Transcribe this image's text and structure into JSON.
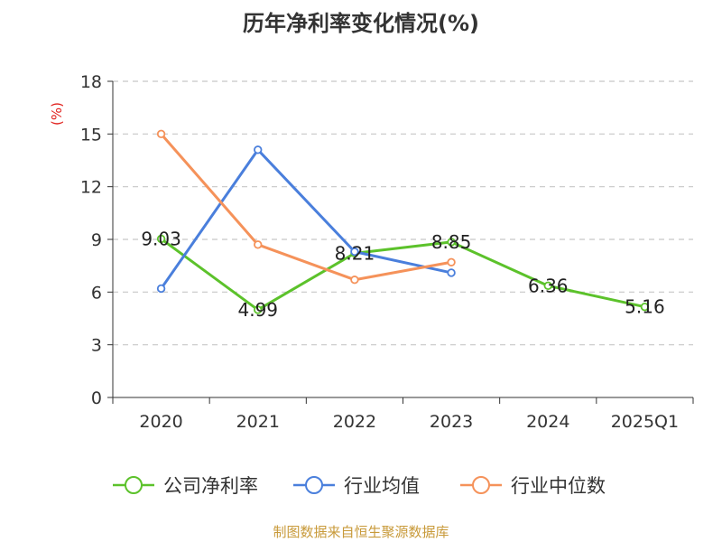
{
  "title": "历年净利率变化情况(%)",
  "source": "制图数据来自恒生聚源数据库",
  "chart_data": {
    "type": "line",
    "title": "历年净利率变化情况(%)",
    "ylabel": "(%)",
    "xlabel": "",
    "ylim": [
      0,
      18
    ],
    "yticks": [
      0,
      3,
      6,
      9,
      12,
      15,
      18
    ],
    "grid": true,
    "legend_position": "bottom",
    "categories": [
      "2020",
      "2021",
      "2022",
      "2023",
      "2024",
      "2025Q1"
    ],
    "series": [
      {
        "name": "公司净利率",
        "color": "#5cc22b",
        "values": [
          9.03,
          4.99,
          8.21,
          8.85,
          6.36,
          5.16
        ],
        "labels": [
          "9.03",
          "4.99",
          "8.21",
          "8.85",
          "6.36",
          "5.16"
        ]
      },
      {
        "name": "行业均值",
        "color": "#4a7fdc",
        "values": [
          6.2,
          14.1,
          8.3,
          7.1,
          null,
          null
        ]
      },
      {
        "name": "行业中位数",
        "color": "#f5925a",
        "values": [
          15.0,
          8.7,
          6.7,
          7.7,
          null,
          null
        ]
      }
    ]
  }
}
